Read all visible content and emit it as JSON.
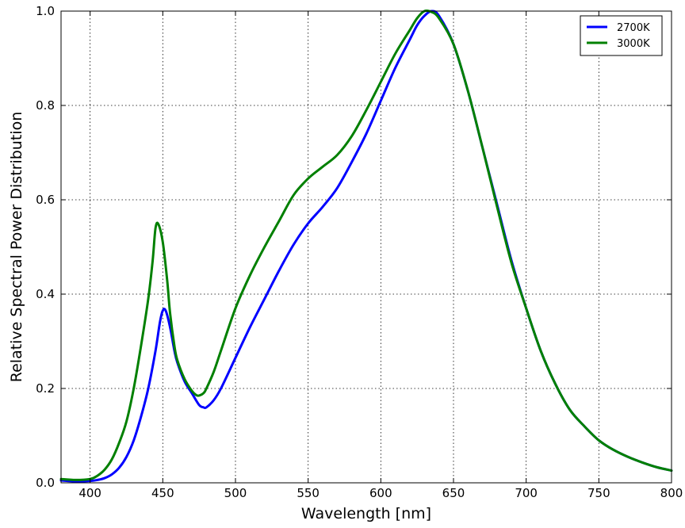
{
  "chart_data": {
    "type": "line",
    "title": "",
    "xlabel": "Wavelength [nm]",
    "ylabel": "Relative Spectral Power Distribution",
    "xlim": [
      380,
      800
    ],
    "ylim": [
      0.0,
      1.0
    ],
    "xticks": [
      400,
      450,
      500,
      550,
      600,
      650,
      700,
      750,
      800
    ],
    "xtick_labels": [
      "400",
      "450",
      "500",
      "550",
      "600",
      "650",
      "700",
      "750",
      "800"
    ],
    "yticks": [
      0.0,
      0.2,
      0.4,
      0.6,
      0.8,
      1.0
    ],
    "ytick_labels": [
      "0.0",
      "0.2",
      "0.4",
      "0.6",
      "0.8",
      "1.0"
    ],
    "grid": true,
    "legend_position": "top-right",
    "series": [
      {
        "name": "2700K",
        "color": "#0000ff",
        "x": [
          380,
          390,
          400,
          405,
          410,
          415,
          420,
          425,
          430,
          435,
          440,
          445,
          448,
          450,
          452,
          455,
          458,
          460,
          465,
          470,
          475,
          478,
          480,
          485,
          490,
          500,
          510,
          520,
          530,
          540,
          550,
          560,
          570,
          580,
          590,
          600,
          610,
          620,
          625,
          630,
          635,
          640,
          650,
          660,
          670,
          680,
          690,
          700,
          710,
          720,
          730,
          740,
          750,
          760,
          770,
          780,
          790,
          800
        ],
        "y": [
          0.005,
          0.003,
          0.004,
          0.006,
          0.01,
          0.018,
          0.032,
          0.055,
          0.09,
          0.14,
          0.2,
          0.28,
          0.34,
          0.365,
          0.365,
          0.33,
          0.28,
          0.255,
          0.215,
          0.19,
          0.165,
          0.16,
          0.16,
          0.175,
          0.2,
          0.265,
          0.33,
          0.39,
          0.45,
          0.505,
          0.55,
          0.585,
          0.625,
          0.68,
          0.74,
          0.81,
          0.88,
          0.94,
          0.97,
          0.99,
          1.0,
          0.99,
          0.93,
          0.83,
          0.71,
          0.59,
          0.47,
          0.37,
          0.28,
          0.21,
          0.155,
          0.12,
          0.09,
          0.07,
          0.055,
          0.043,
          0.033,
          0.026
        ]
      },
      {
        "name": "3000K",
        "color": "#008000",
        "x": [
          380,
          390,
          400,
          405,
          410,
          415,
          420,
          425,
          430,
          435,
          440,
          443,
          445,
          447,
          450,
          453,
          455,
          458,
          460,
          465,
          470,
          473,
          475,
          478,
          480,
          485,
          490,
          500,
          510,
          520,
          530,
          540,
          550,
          560,
          570,
          580,
          590,
          600,
          610,
          620,
          625,
          630,
          635,
          640,
          650,
          660,
          670,
          680,
          690,
          700,
          710,
          720,
          730,
          740,
          750,
          760,
          770,
          780,
          790,
          800
        ],
        "y": [
          0.008,
          0.006,
          0.008,
          0.015,
          0.028,
          0.05,
          0.085,
          0.13,
          0.2,
          0.29,
          0.39,
          0.47,
          0.54,
          0.548,
          0.51,
          0.43,
          0.36,
          0.29,
          0.26,
          0.22,
          0.195,
          0.186,
          0.185,
          0.19,
          0.2,
          0.235,
          0.28,
          0.37,
          0.44,
          0.5,
          0.555,
          0.61,
          0.645,
          0.67,
          0.695,
          0.735,
          0.79,
          0.85,
          0.91,
          0.96,
          0.985,
          1.0,
          0.998,
          0.985,
          0.93,
          0.83,
          0.71,
          0.585,
          0.465,
          0.37,
          0.28,
          0.21,
          0.155,
          0.12,
          0.09,
          0.07,
          0.055,
          0.043,
          0.033,
          0.026
        ]
      }
    ]
  }
}
